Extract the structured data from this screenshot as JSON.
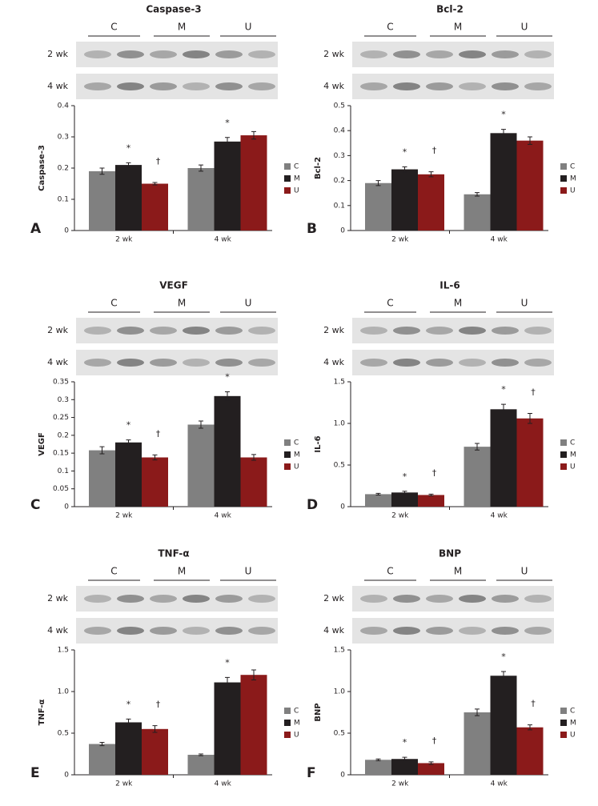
{
  "chart_data": [
    {
      "type": "bar",
      "panel": "A",
      "title": "Caspase-3",
      "blot": {
        "lanes": [
          "C",
          "M",
          "U"
        ],
        "rows": [
          "2 wk",
          "4 wk"
        ]
      },
      "ylabel": "Caspase-3",
      "categories": [
        "2 wk",
        "4 wk"
      ],
      "ylim": [
        0,
        0.4
      ],
      "yticks": [
        0,
        0.1,
        0.2,
        0.3,
        0.4
      ],
      "legend": "right",
      "series": [
        {
          "name": "C",
          "color": "#808080",
          "values": [
            0.19,
            0.2
          ],
          "errors": [
            0.01,
            0.01
          ]
        },
        {
          "name": "M",
          "color": "#231f20",
          "values": [
            0.21,
            0.285
          ],
          "errors": [
            0.007,
            0.013
          ],
          "markers": [
            "*",
            "*"
          ]
        },
        {
          "name": "U",
          "color": "#8b1a1a",
          "values": [
            0.15,
            0.305
          ],
          "errors": [
            0.004,
            0.012
          ],
          "markers": [
            "†",
            null
          ]
        }
      ]
    },
    {
      "type": "bar",
      "panel": "B",
      "title": "Bcl-2",
      "blot": {
        "lanes": [
          "C",
          "M",
          "U"
        ],
        "rows": [
          "2 wk",
          "4 wk"
        ]
      },
      "ylabel": "Bcl-2",
      "categories": [
        "2 wk",
        "4 wk"
      ],
      "ylim": [
        0,
        0.5
      ],
      "yticks": [
        0,
        0.1,
        0.2,
        0.3,
        0.4,
        0.5
      ],
      "legend": "right",
      "series": [
        {
          "name": "C",
          "color": "#808080",
          "values": [
            0.19,
            0.145
          ],
          "errors": [
            0.01,
            0.007
          ]
        },
        {
          "name": "M",
          "color": "#231f20",
          "values": [
            0.245,
            0.39
          ],
          "errors": [
            0.01,
            0.015
          ],
          "markers": [
            "*",
            "*"
          ]
        },
        {
          "name": "U",
          "color": "#8b1a1a",
          "values": [
            0.225,
            0.36
          ],
          "errors": [
            0.01,
            0.015
          ],
          "markers": [
            "†",
            null
          ]
        }
      ]
    },
    {
      "type": "bar",
      "panel": "C",
      "title": "VEGF",
      "blot": {
        "lanes": [
          "C",
          "M",
          "U"
        ],
        "rows": [
          "2 wk",
          "4 wk"
        ]
      },
      "ylabel": "VEGF",
      "categories": [
        "2 wk",
        "4 wk"
      ],
      "ylim": [
        0,
        0.35
      ],
      "yticks": [
        0,
        0.05,
        0.1,
        0.15,
        0.2,
        0.25,
        0.3,
        0.35
      ],
      "legend": "right",
      "series": [
        {
          "name": "C",
          "color": "#808080",
          "values": [
            0.158,
            0.23
          ],
          "errors": [
            0.01,
            0.01
          ]
        },
        {
          "name": "M",
          "color": "#231f20",
          "values": [
            0.18,
            0.31
          ],
          "errors": [
            0.007,
            0.012
          ],
          "markers": [
            "*",
            "*"
          ]
        },
        {
          "name": "U",
          "color": "#8b1a1a",
          "values": [
            0.138,
            0.138
          ],
          "errors": [
            0.007,
            0.008
          ],
          "markers": [
            "†",
            null
          ]
        }
      ]
    },
    {
      "type": "bar",
      "panel": "D",
      "title": "IL-6",
      "blot": {
        "lanes": [
          "C",
          "M",
          "U"
        ],
        "rows": [
          "2 wk",
          "4 wk"
        ]
      },
      "ylabel": "IL-6",
      "categories": [
        "2 wk",
        "4 wk"
      ],
      "ylim": [
        0,
        1.5
      ],
      "yticks": [
        0,
        0.5,
        {
          "value": 1,
          "label": "1.0"
        },
        1.5
      ],
      "legend": "right",
      "series": [
        {
          "name": "C",
          "color": "#808080",
          "values": [
            0.15,
            0.72
          ],
          "errors": [
            0.01,
            0.04
          ]
        },
        {
          "name": "M",
          "color": "#231f20",
          "values": [
            0.17,
            1.17
          ],
          "errors": [
            0.015,
            0.06
          ],
          "markers": [
            "*",
            "*"
          ]
        },
        {
          "name": "U",
          "color": "#8b1a1a",
          "values": [
            0.14,
            1.06
          ],
          "errors": [
            0.01,
            0.06
          ],
          "markers": [
            "†",
            "†"
          ]
        }
      ]
    },
    {
      "type": "bar",
      "panel": "E",
      "title": "TNF-α",
      "blot": {
        "lanes": [
          "C",
          "M",
          "U"
        ],
        "rows": [
          "2 wk",
          "4 wk"
        ]
      },
      "ylabel": "TNF-α",
      "categories": [
        "2 wk",
        "4 wk"
      ],
      "ylim": [
        0,
        1.5
      ],
      "yticks": [
        0,
        0.5,
        {
          "value": 1,
          "label": "1.0"
        },
        1.5
      ],
      "legend": "right",
      "series": [
        {
          "name": "C",
          "color": "#808080",
          "values": [
            0.37,
            0.24
          ],
          "errors": [
            0.02,
            0.01
          ]
        },
        {
          "name": "M",
          "color": "#231f20",
          "values": [
            0.63,
            1.11
          ],
          "errors": [
            0.04,
            0.06
          ],
          "markers": [
            "*",
            "*"
          ]
        },
        {
          "name": "U",
          "color": "#8b1a1a",
          "values": [
            0.55,
            1.2
          ],
          "errors": [
            0.04,
            0.06
          ],
          "markers": [
            "†",
            null
          ]
        }
      ]
    },
    {
      "type": "bar",
      "panel": "F",
      "title": "BNP",
      "blot": {
        "lanes": [
          "C",
          "M",
          "U"
        ],
        "rows": [
          "2 wk",
          "4 wk"
        ]
      },
      "ylabel": "BNP",
      "categories": [
        "2 wk",
        "4 wk"
      ],
      "ylim": [
        0,
        1.5
      ],
      "yticks": [
        0,
        0.5,
        {
          "value": 1,
          "label": "1.0"
        },
        1.5
      ],
      "legend": "right",
      "series": [
        {
          "name": "C",
          "color": "#808080",
          "values": [
            0.18,
            0.75
          ],
          "errors": [
            0.01,
            0.04
          ]
        },
        {
          "name": "M",
          "color": "#231f20",
          "values": [
            0.19,
            1.19
          ],
          "errors": [
            0.02,
            0.05
          ],
          "markers": [
            "*",
            "*"
          ]
        },
        {
          "name": "U",
          "color": "#8b1a1a",
          "values": [
            0.14,
            0.57
          ],
          "errors": [
            0.015,
            0.03
          ],
          "markers": [
            "†",
            "†"
          ]
        }
      ]
    }
  ]
}
